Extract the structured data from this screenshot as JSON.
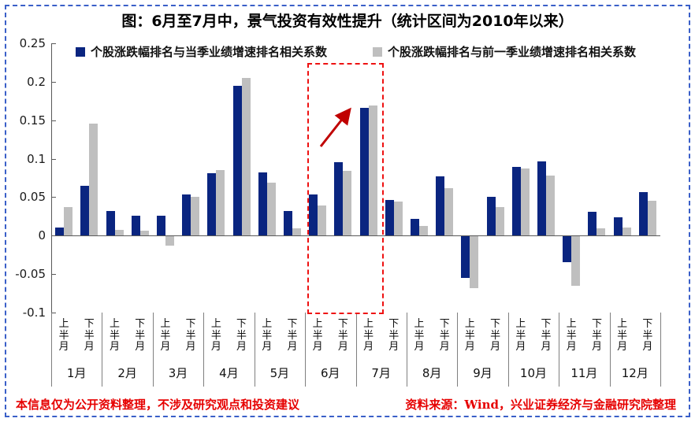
{
  "title": "图：6月至7月中，景气投资有效性提升（统计区间为2010年以来）",
  "legend": {
    "items": [
      {
        "label": "个股涨跌幅排名与当季业绩增速排名相关系数",
        "color": "#0a2580"
      },
      {
        "label": "个股涨跌幅排名与前一季业绩增速排名相关系数",
        "color": "#bfbfbf"
      }
    ]
  },
  "footer": {
    "left": "本信息仅为公开资料整理，不涉及研究观点和投资建议",
    "right": "资料来源：Wind，兴业证券经济与金融研究院整理",
    "color": "#e60000"
  },
  "colors": {
    "series1": "#0a2580",
    "series2": "#bfbfbf",
    "frame_border": "#3a5fc8",
    "highlight": "#ee1111",
    "arrow": "#c00000",
    "axis": "#595959"
  },
  "chart_data": {
    "type": "bar",
    "title": "图：6月至7月中，景气投资有效性提升（统计区间为2010年以来）",
    "months": [
      "1月",
      "2月",
      "3月",
      "4月",
      "5月",
      "6月",
      "7月",
      "8月",
      "9月",
      "10月",
      "11月",
      "12月"
    ],
    "half_labels": [
      "上半月",
      "下半月"
    ],
    "categories": [
      "1月上半月",
      "1月下半月",
      "2月上半月",
      "2月下半月",
      "3月上半月",
      "3月下半月",
      "4月上半月",
      "4月下半月",
      "5月上半月",
      "5月下半月",
      "6月上半月",
      "6月下半月",
      "7月上半月",
      "7月下半月",
      "8月上半月",
      "8月下半月",
      "9月上半月",
      "9月下半月",
      "10月上半月",
      "10月下半月",
      "11月上半月",
      "11月下半月",
      "12月上半月",
      "12月下半月"
    ],
    "series": [
      {
        "name": "个股涨跌幅排名与当季业绩增速排名相关系数",
        "color": "#0a2580",
        "values": [
          0.011,
          0.065,
          0.032,
          0.026,
          0.026,
          0.054,
          0.081,
          0.195,
          0.082,
          0.032,
          0.054,
          0.095,
          0.166,
          0.046,
          0.022,
          0.077,
          -0.055,
          0.05,
          0.089,
          0.097,
          -0.035,
          0.031,
          0.024,
          0.057
        ]
      },
      {
        "name": "个股涨跌幅排名与前一季业绩增速排名相关系数",
        "color": "#bfbfbf",
        "values": [
          0.037,
          0.146,
          0.007,
          0.006,
          -0.013,
          0.05,
          0.085,
          0.205,
          0.069,
          0.01,
          0.039,
          0.084,
          0.169,
          0.044,
          0.013,
          0.062,
          -0.068,
          0.037,
          0.087,
          0.078,
          -0.065,
          0.01,
          0.011,
          0.045
        ]
      }
    ],
    "ylim": [
      -0.1,
      0.25
    ],
    "ytick_values": [
      0.25,
      0.2,
      0.15,
      0.1,
      0.05,
      0,
      -0.05,
      -0.1
    ],
    "ytick_labels": [
      "0.25",
      "0.2",
      "0.15",
      "0.1",
      "0.05",
      "0",
      "-0.05",
      "-0.1"
    ],
    "grid": false,
    "legend_position": "top",
    "annotations": {
      "highlight_box": {
        "from_category": "6月上半月",
        "to_category": "7月上半月",
        "style": "red dashed rectangle"
      },
      "arrow": {
        "style": "red",
        "direction": "up-right",
        "meaning": "景气投资有效性提升"
      }
    }
  }
}
